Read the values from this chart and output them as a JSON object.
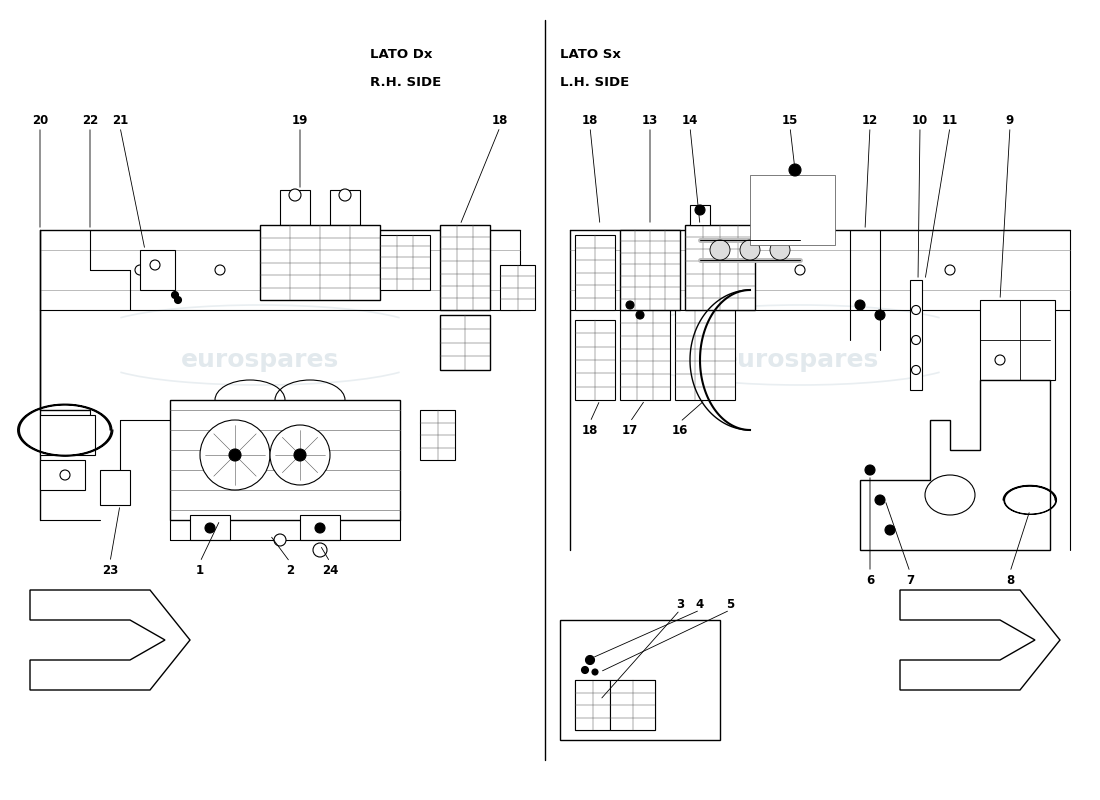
{
  "bg_color": "#ffffff",
  "watermark_text": "eurospares",
  "wm_color": "#c0cfd8",
  "wm_alpha": 0.45,
  "left_label1": "LATO Dx",
  "left_label2": "R.H. SIDE",
  "right_label1": "LATO Sx",
  "right_label2": "L.H. SIDE",
  "num_fontsize": 8.5,
  "label_fontsize": 9.5
}
